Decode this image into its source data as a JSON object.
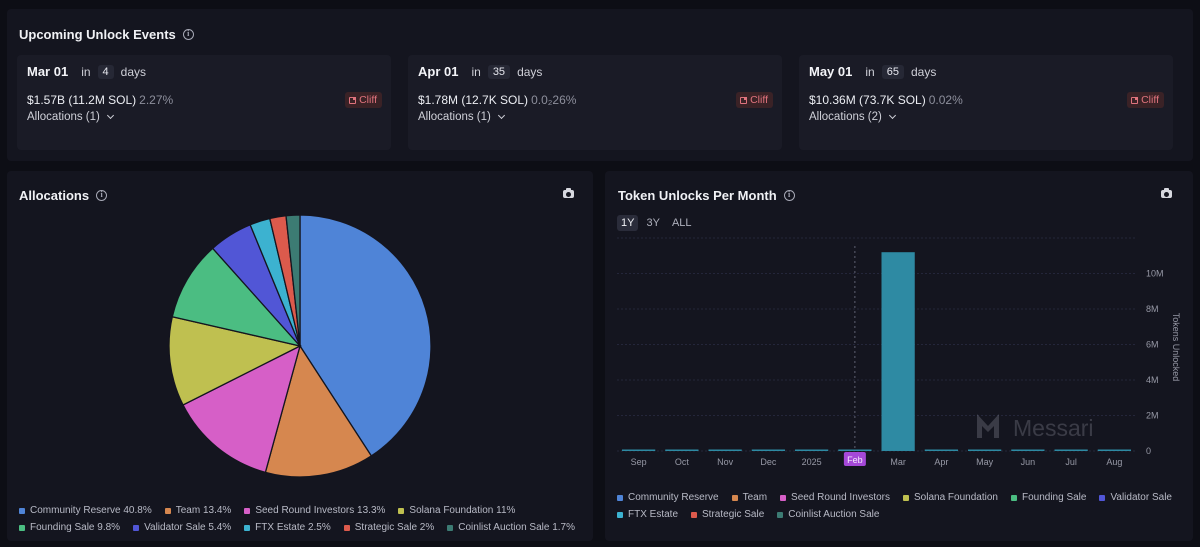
{
  "upcoming": {
    "title": "Upcoming Unlock Events",
    "events": [
      {
        "date": "Mar 01",
        "in": "in",
        "days": "4",
        "days_label": "days",
        "value": "$1.57B (11.2M SOL)",
        "pct": "2.27%",
        "badge": "Cliff",
        "allocations": "Allocations (1)"
      },
      {
        "date": "Apr 01",
        "in": "in",
        "days": "35",
        "days_label": "days",
        "value": "$1.78M (12.7K SOL)",
        "pct": "0.0₂26%",
        "badge": "Cliff",
        "allocations": "Allocations (1)"
      },
      {
        "date": "May 01",
        "in": "in",
        "days": "65",
        "days_label": "days",
        "value": "$10.36M (73.7K SOL)",
        "pct": "0.02%",
        "badge": "Cliff",
        "allocations": "Allocations (2)"
      }
    ]
  },
  "allocations_panel": {
    "title": "Allocations",
    "legend": [
      {
        "label": "Community Reserve 40.8%",
        "color": "#4f84d7"
      },
      {
        "label": "Team 13.4%",
        "color": "#d6874f"
      },
      {
        "label": "Seed Round Investors 13.3%",
        "color": "#d65fc7"
      },
      {
        "label": "Solana Foundation 11%",
        "color": "#bfc050"
      },
      {
        "label": "Founding Sale 9.8%",
        "color": "#4bbd82"
      },
      {
        "label": "Validator Sale 5.4%",
        "color": "#5156d6"
      },
      {
        "label": "FTX Estate 2.5%",
        "color": "#3cb2d0"
      },
      {
        "label": "Strategic Sale 2%",
        "color": "#dc5a4c"
      },
      {
        "label": "Coinlist Auction Sale 1.7%",
        "color": "#3c7b73"
      }
    ]
  },
  "unlocks_panel": {
    "title": "Token Unlocks Per Month",
    "range_tabs": [
      "1Y",
      "3Y",
      "ALL"
    ],
    "active_tab": "1Y",
    "current_month_marker": "Feb",
    "watermark": "Messari",
    "legend": [
      {
        "label": "Community Reserve",
        "color": "#4f84d7"
      },
      {
        "label": "Team",
        "color": "#d6874f"
      },
      {
        "label": "Seed Round Investors",
        "color": "#d65fc7"
      },
      {
        "label": "Solana Foundation",
        "color": "#bfc050"
      },
      {
        "label": "Founding Sale",
        "color": "#4bbd82"
      },
      {
        "label": "Validator Sale",
        "color": "#5156d6"
      },
      {
        "label": "FTX Estate",
        "color": "#3cb2d0"
      },
      {
        "label": "Strategic Sale",
        "color": "#dc5a4c"
      },
      {
        "label": "Coinlist Auction Sale",
        "color": "#3c7b73"
      }
    ]
  },
  "chart_data": [
    {
      "type": "pie",
      "title": "Allocations",
      "categories": [
        "Community Reserve",
        "Team",
        "Seed Round Investors",
        "Solana Foundation",
        "Founding Sale",
        "Validator Sale",
        "FTX Estate",
        "Strategic Sale",
        "Coinlist Auction Sale"
      ],
      "values": [
        40.8,
        13.4,
        13.3,
        11,
        9.8,
        5.4,
        2.5,
        2,
        1.7
      ],
      "colors": [
        "#4f84d7",
        "#d6874f",
        "#d65fc7",
        "#bfc050",
        "#4bbd82",
        "#5156d6",
        "#3cb2d0",
        "#dc5a4c",
        "#3c7b73"
      ]
    },
    {
      "type": "bar",
      "title": "Token Unlocks Per Month",
      "categories": [
        "Sep",
        "Oct",
        "Nov",
        "Dec",
        "2025",
        "Feb",
        "Mar",
        "Apr",
        "May",
        "Jun",
        "Jul",
        "Aug"
      ],
      "values": [
        0,
        0,
        0,
        0,
        0,
        0,
        11200000,
        12700,
        73700,
        0,
        0,
        0
      ],
      "color": "#2e8aa3",
      "ylabel": "Tokens Unlocked",
      "yticks": [
        "0",
        "2M",
        "4M",
        "6M",
        "8M",
        "10M"
      ],
      "ylim": [
        0,
        12000000
      ],
      "legend_position": "bottom"
    }
  ]
}
